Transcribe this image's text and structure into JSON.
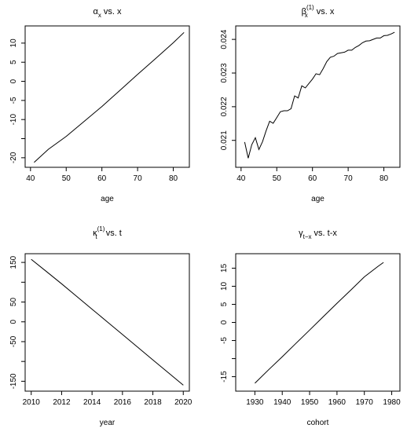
{
  "chart_data": [
    {
      "type": "line",
      "title": "αx vs. x",
      "title_parts": {
        "base": "α",
        "sub": "x",
        "sup": "",
        "rest": " vs. x"
      },
      "xlabel": "age",
      "ylabel": "",
      "xlim": [
        38.5,
        84.5
      ],
      "ylim": [
        -22.5,
        14.5
      ],
      "xticks": [
        40,
        50,
        60,
        70,
        80
      ],
      "yticks": [
        -20,
        -15,
        -10,
        -5,
        0,
        5,
        10
      ],
      "ytick_labels": [
        "-20",
        "",
        "-10",
        "-5",
        "0",
        "5",
        "10"
      ],
      "x": [
        41,
        45,
        50,
        55,
        60,
        65,
        70,
        75,
        80,
        83
      ],
      "y": [
        -21.2,
        -17.8,
        -14.4,
        -10.5,
        -6.6,
        -2.4,
        1.8,
        5.9,
        10.1,
        12.8
      ]
    },
    {
      "type": "line",
      "title": "βx(1) vs. x",
      "title_parts": {
        "base": "β",
        "sub": "x",
        "sup": "(1)",
        "rest": " vs. x"
      },
      "xlabel": "age",
      "ylabel": "",
      "xlim": [
        38.5,
        84.5
      ],
      "ylim": [
        0.0202,
        0.0244
      ],
      "xticks": [
        40,
        50,
        60,
        70,
        80
      ],
      "yticks": [
        0.021,
        0.022,
        0.023,
        0.024
      ],
      "ytick_labels": [
        "0.021",
        "0.022",
        "0.023",
        "0.024"
      ],
      "x": [
        41,
        42,
        43,
        44,
        45,
        46,
        47,
        48,
        49,
        50,
        51,
        52,
        53,
        54,
        55,
        56,
        57,
        58,
        59,
        60,
        61,
        62,
        63,
        64,
        65,
        66,
        67,
        68,
        69,
        70,
        71,
        72,
        73,
        74,
        75,
        76,
        77,
        78,
        79,
        80,
        81,
        82,
        83
      ],
      "y": [
        0.02095,
        0.02047,
        0.02087,
        0.02108,
        0.02073,
        0.02096,
        0.02128,
        0.02157,
        0.02151,
        0.02168,
        0.02185,
        0.02188,
        0.02188,
        0.02194,
        0.02232,
        0.02226,
        0.02262,
        0.02256,
        0.02269,
        0.02282,
        0.02298,
        0.02295,
        0.02313,
        0.02334,
        0.02347,
        0.0235,
        0.02358,
        0.0236,
        0.02362,
        0.02368,
        0.02368,
        0.02376,
        0.02382,
        0.0239,
        0.02395,
        0.02396,
        0.024,
        0.02404,
        0.02404,
        0.02411,
        0.02412,
        0.02416,
        0.02421
      ]
    },
    {
      "type": "line",
      "title": "κt(1) vs. t",
      "title_parts": {
        "base": "κ",
        "sub": "t",
        "sup": "(1)",
        "rest": " vs. t"
      },
      "xlabel": "year",
      "ylabel": "",
      "xlim": [
        2009.6,
        2020.4
      ],
      "ylim": [
        -175,
        172
      ],
      "xticks": [
        2010,
        2012,
        2014,
        2016,
        2018,
        2020
      ],
      "yticks": [
        -150,
        -100,
        -50,
        0,
        50,
        100,
        150
      ],
      "ytick_labels": [
        "-150",
        "",
        "-50",
        "0",
        "50",
        "",
        "150"
      ],
      "x": [
        2010,
        2011,
        2012,
        2013,
        2014,
        2015,
        2016,
        2017,
        2018,
        2019,
        2020
      ],
      "y": [
        158,
        127,
        96,
        64,
        32,
        0,
        -32,
        -64,
        -96,
        -128,
        -160
      ]
    },
    {
      "type": "line",
      "title": "γt−x vs. t-x",
      "title_parts": {
        "base": "γ",
        "sub": "t−x",
        "sup": "",
        "rest": " vs. t-x"
      },
      "xlabel": "cohort",
      "ylabel": "",
      "xlim": [
        1923,
        1983
      ],
      "ylim": [
        -19,
        19
      ],
      "xticks": [
        1930,
        1940,
        1950,
        1960,
        1970,
        1980
      ],
      "yticks": [
        -15,
        -10,
        -5,
        0,
        5,
        10,
        15
      ],
      "ytick_labels": [
        "-15",
        "",
        "-5",
        "0",
        "5",
        "10",
        "15"
      ],
      "x": [
        1930,
        1935,
        1940,
        1945,
        1950,
        1955,
        1960,
        1965,
        1970,
        1975,
        1977
      ],
      "y": [
        -16.8,
        -13.1,
        -9.5,
        -5.8,
        -2.1,
        1.6,
        5.3,
        8.9,
        12.6,
        15.5,
        16.6
      ]
    }
  ]
}
